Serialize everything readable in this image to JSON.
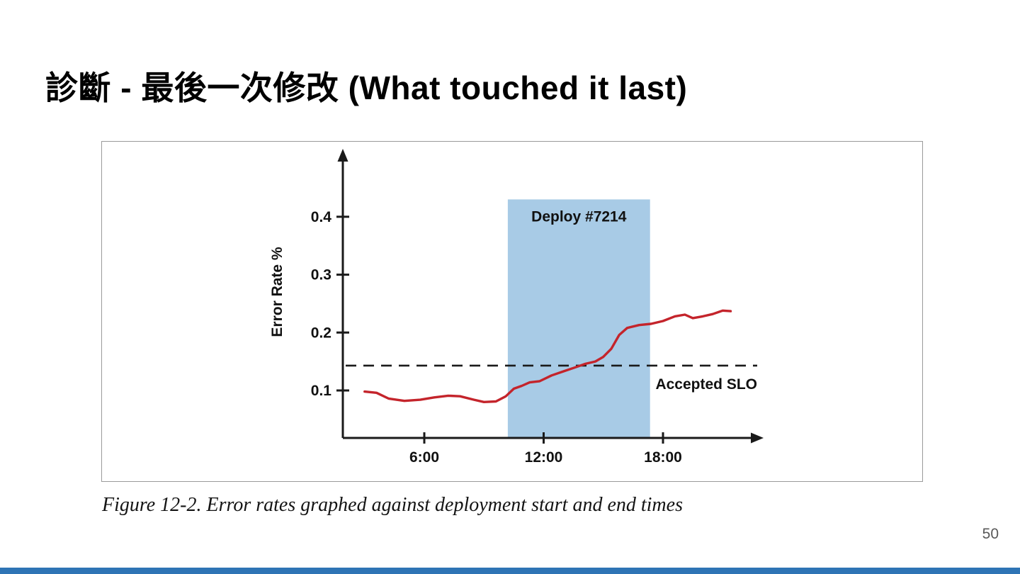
{
  "slide": {
    "title": "診斷 - 最後一次修改 (What touched it last)",
    "caption": "Figure 12-2. Error rates graphed against deployment start and end times",
    "page_number": "50",
    "footer_bar_color": "#2e74b5"
  },
  "chart_data": {
    "type": "line",
    "title": "",
    "xlabel": "",
    "ylabel": "Error Rate %",
    "x_ticks": [
      6,
      12,
      18
    ],
    "x_tick_labels": [
      "6:00",
      "12:00",
      "18:00"
    ],
    "y_ticks": [
      0.1,
      0.2,
      0.3,
      0.4
    ],
    "y_tick_labels": [
      "0.1",
      "0.2",
      "0.3",
      "0.4"
    ],
    "xlim": [
      2.2,
      23.2
    ],
    "ylim": [
      0,
      0.49
    ],
    "grid": false,
    "legend": "none",
    "slo": {
      "label": "Accepted SLO",
      "value": 0.143
    },
    "deploy_region": {
      "label": "Deploy #7214",
      "x_start": 10.2,
      "x_end": 17.35,
      "top": 0.43,
      "color": "#a8cbe6"
    },
    "series": [
      {
        "name": "Error rate %",
        "color": "#c4242b",
        "x": [
          3.0,
          3.6,
          4.2,
          5.0,
          5.8,
          6.5,
          7.2,
          7.8,
          8.5,
          9.0,
          9.6,
          10.1,
          10.5,
          10.9,
          11.3,
          11.8,
          12.4,
          13.0,
          13.6,
          14.1,
          14.6,
          15.0,
          15.4,
          15.8,
          16.2,
          16.8,
          17.4,
          18.0,
          18.6,
          19.1,
          19.5,
          20.0,
          20.5,
          21.0,
          21.4
        ],
        "y": [
          0.098,
          0.096,
          0.086,
          0.082,
          0.084,
          0.088,
          0.091,
          0.09,
          0.084,
          0.08,
          0.081,
          0.09,
          0.103,
          0.108,
          0.114,
          0.116,
          0.126,
          0.133,
          0.14,
          0.146,
          0.15,
          0.158,
          0.172,
          0.196,
          0.208,
          0.213,
          0.215,
          0.22,
          0.228,
          0.231,
          0.225,
          0.228,
          0.232,
          0.238,
          0.237
        ]
      }
    ]
  }
}
